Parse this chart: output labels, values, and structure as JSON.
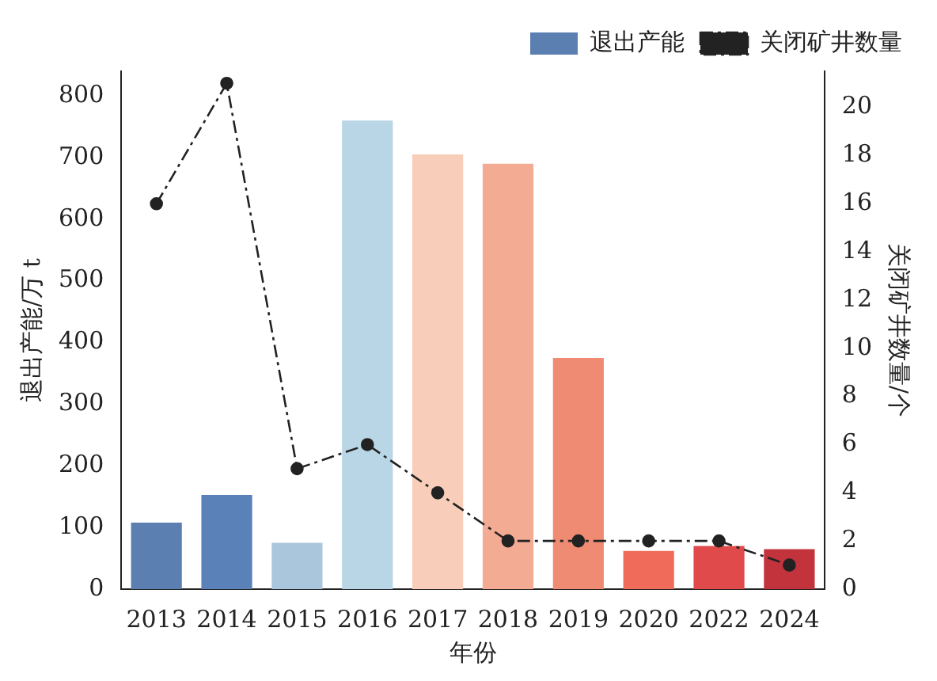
{
  "chart_data": {
    "type": "bar",
    "xlabel": "年份",
    "ylabel": "退出产能/万 t",
    "y2label": "关闭矿井数量/个",
    "categories": [
      "2013",
      "2014",
      "2015",
      "2016",
      "2017",
      "2018",
      "2019",
      "2020",
      "2022",
      "2024"
    ],
    "series": [
      {
        "name": "退出产能",
        "colors": [
          "#5a7fb0",
          "#5a82b8",
          "#a9c6dd",
          "#b9d6e6",
          "#f8cdb9",
          "#f4ab93",
          "#ef8b72",
          "#f06b5a",
          "#e04a4a",
          "#c2333c"
        ],
        "values": [
          108,
          153,
          75,
          760,
          705,
          690,
          375,
          62,
          70,
          65
        ]
      },
      {
        "name": "关闭矿井数量",
        "type": "line",
        "axis": "y2",
        "color": "#222222",
        "marker": "circle",
        "line_style": "dashed",
        "values": [
          16,
          21,
          5,
          6,
          4,
          2,
          2,
          2,
          2,
          1
        ]
      }
    ],
    "ylim": [
      0,
      840
    ],
    "yticks": [
      0,
      100,
      200,
      300,
      400,
      500,
      600,
      700,
      800
    ],
    "y2lim": [
      0,
      21.5
    ],
    "y2ticks": [
      0,
      2,
      4,
      6,
      8,
      10,
      12,
      14,
      16,
      18,
      20
    ],
    "grid": false,
    "legend": "top right"
  }
}
